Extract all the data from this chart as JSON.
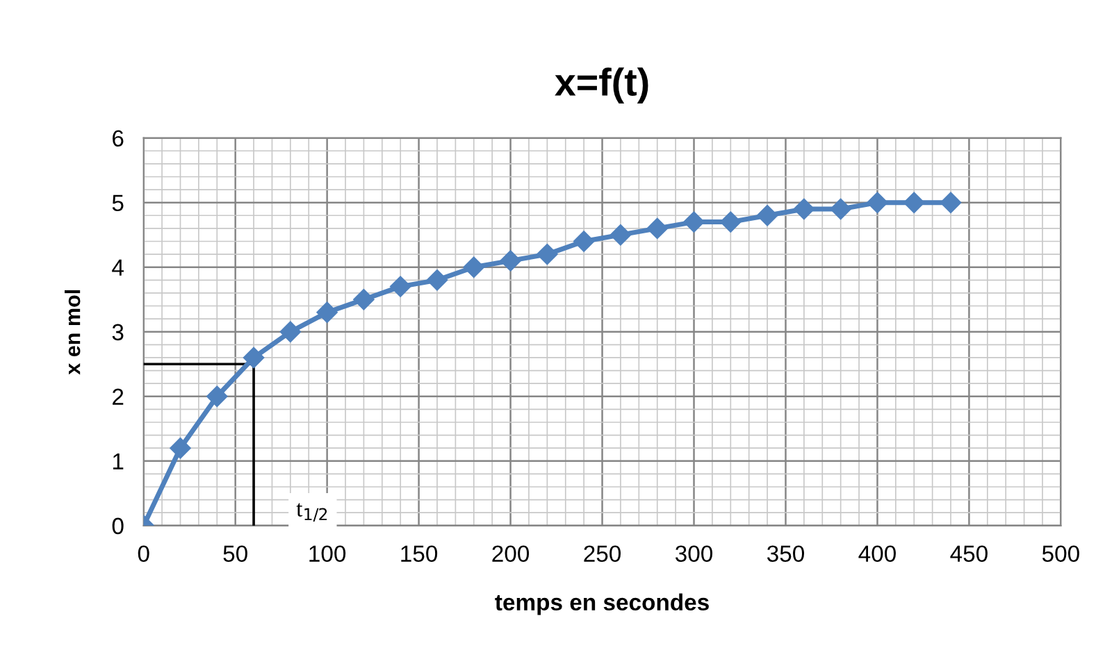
{
  "chart_data": {
    "type": "line",
    "title": "x=f(t)",
    "xlabel": "temps en secondes",
    "ylabel": "x en mol",
    "x": [
      0,
      20,
      40,
      60,
      80,
      100,
      120,
      140,
      160,
      180,
      200,
      220,
      240,
      260,
      280,
      300,
      320,
      340,
      360,
      380,
      400,
      420,
      440
    ],
    "series": [
      {
        "color": "#4f81bd",
        "values": [
          0,
          1.2,
          2.0,
          2.6,
          3.0,
          3.3,
          3.5,
          3.7,
          3.8,
          4.0,
          4.1,
          4.2,
          4.4,
          4.5,
          4.6,
          4.7,
          4.7,
          4.8,
          4.9,
          4.9,
          5.0,
          5.0,
          5.0
        ]
      }
    ],
    "xlim": [
      0,
      500
    ],
    "xticks": [
      0,
      50,
      100,
      150,
      200,
      250,
      300,
      350,
      400,
      450,
      500
    ],
    "ylim": [
      0,
      6
    ],
    "yticks": [
      0,
      1,
      2,
      3,
      4,
      5,
      6
    ],
    "ref_lines": [
      {
        "axis": "y",
        "value": 2.5,
        "color": "#000000"
      },
      {
        "axis": "x",
        "value": 60,
        "color": "#000000"
      }
    ],
    "annotations": [
      {
        "text": "t$_{1/2}$",
        "x": 60,
        "y": 0
      }
    ],
    "grid": true,
    "marker": "diamond",
    "line_style": "solid",
    "legend": false
  }
}
